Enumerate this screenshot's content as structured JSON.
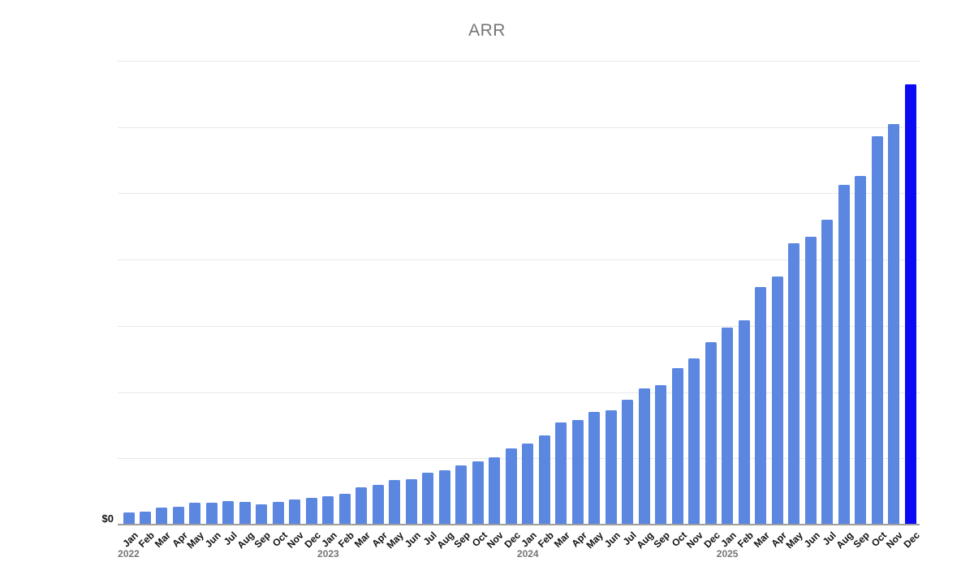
{
  "title": "ARR",
  "y_axis": {
    "zero_label": "$0"
  },
  "colors": {
    "bar": "#5c87e0",
    "highlight_bar": "#0a0af5",
    "gridline": "#e8e8e8",
    "axis_line": "#9e9e9e",
    "title_text": "#757575",
    "tick_text": "#111111",
    "year_text": "#757575",
    "background": "#ffffff"
  },
  "chart_data": {
    "type": "bar",
    "title": "ARR",
    "categories": [
      "Jan",
      "Feb",
      "Mar",
      "Apr",
      "May",
      "Jun",
      "Jul",
      "Aug",
      "Sep",
      "Oct",
      "Nov",
      "Dec",
      "Jan",
      "Feb",
      "Mar",
      "Apr",
      "May",
      "Jun",
      "Jul",
      "Aug",
      "Sep",
      "Oct",
      "Nov",
      "Dec",
      "Jan",
      "Feb",
      "Mar",
      "Apr",
      "May",
      "Jun",
      "Jul",
      "Aug",
      "Sep",
      "Oct",
      "Nov",
      "Dec",
      "Jan",
      "Feb",
      "Mar",
      "Apr",
      "May",
      "Jun",
      "Jul",
      "Aug",
      "Sep",
      "Oct",
      "Nov",
      "Dec"
    ],
    "year_labels": [
      {
        "text": "2022",
        "at_index": 0
      },
      {
        "text": "2023",
        "at_index": 12
      },
      {
        "text": "2024",
        "at_index": 24
      },
      {
        "text": "2025",
        "at_index": 36
      }
    ],
    "values_pct_of_max": [
      2.8,
      2.9,
      3.9,
      4.1,
      5.0,
      5.0,
      5.3,
      5.2,
      4.6,
      5.2,
      5.7,
      6.1,
      6.4,
      7.0,
      8.5,
      9.0,
      10.1,
      10.3,
      11.8,
      12.4,
      13.4,
      14.4,
      15.3,
      17.3,
      18.4,
      20.3,
      23.2,
      23.8,
      25.6,
      26.0,
      28.3,
      30.9,
      31.7,
      35.6,
      37.8,
      41.4,
      44.7,
      46.4,
      54.0,
      56.4,
      63.9,
      65.4,
      69.2,
      77.2,
      79.2,
      88.2,
      91.0,
      100.0
    ],
    "value_units": "percent_of_max_bar",
    "highlight_index": 47,
    "y_tick_labels": [
      "$0"
    ],
    "xlabel": "",
    "ylabel": "",
    "grid": "horizontal, 7 equal intervals above baseline",
    "legend": "none"
  }
}
